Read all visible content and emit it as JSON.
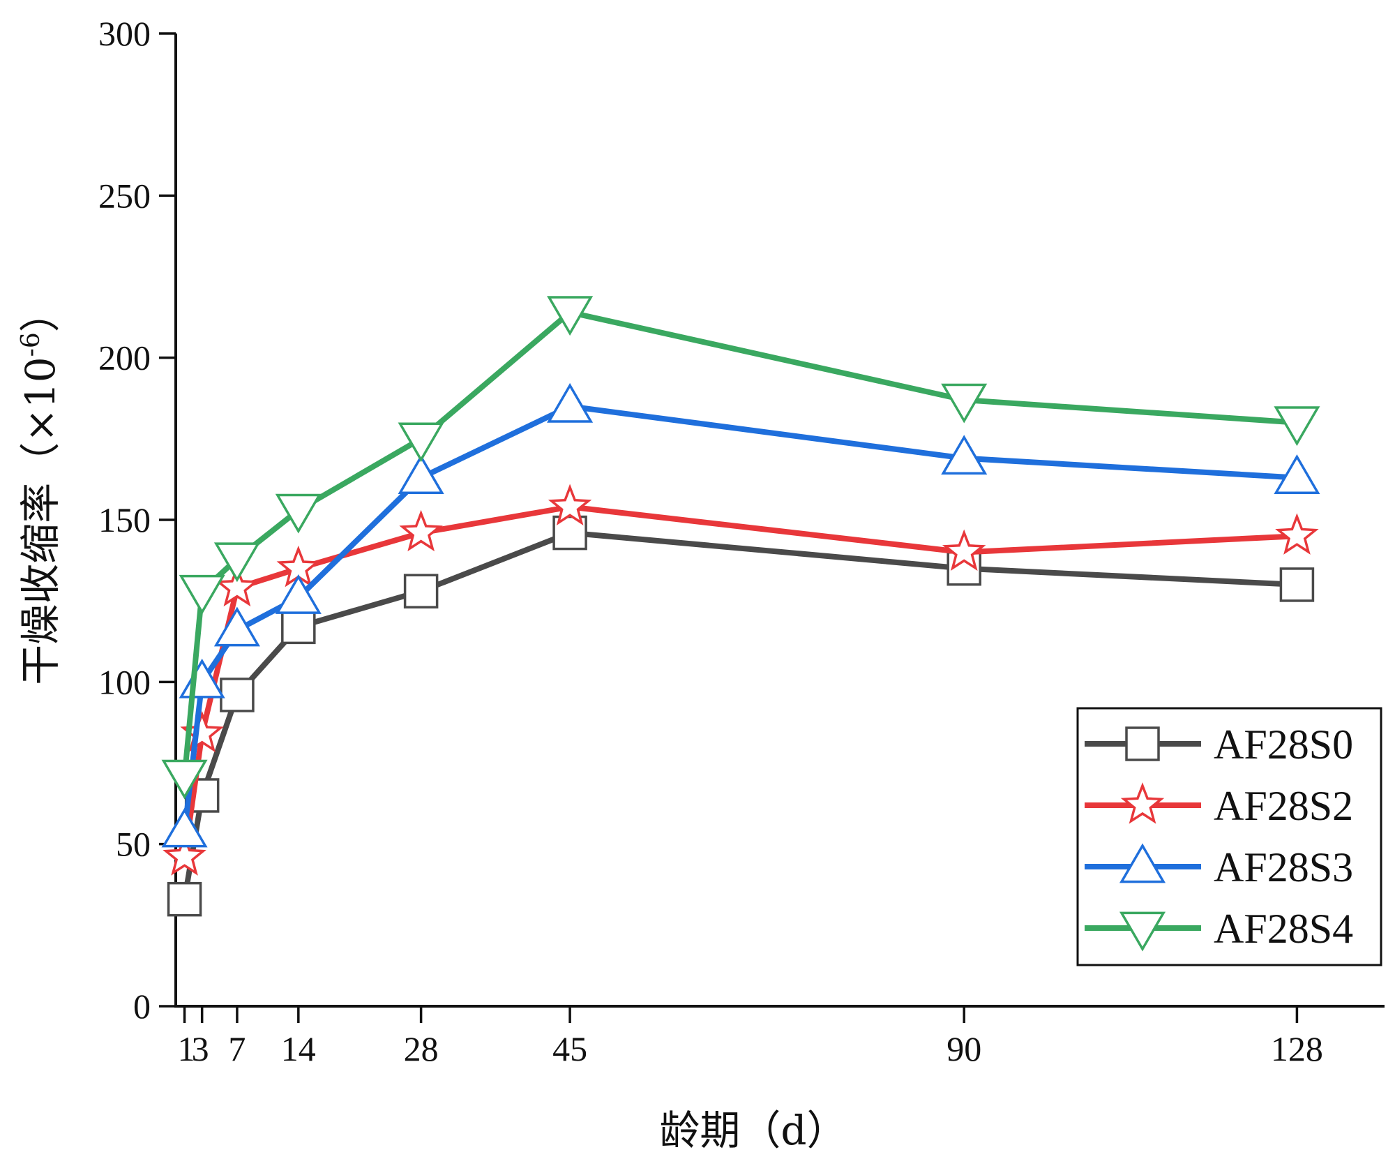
{
  "chart_data": {
    "type": "line",
    "title": "",
    "xlabel": "龄期（d）",
    "ylabel_main": "干燥收缩率（×10",
    "ylabel_sup": "-6",
    "ylabel_close": "）",
    "xlim": [
      0,
      138
    ],
    "ylim": [
      0,
      300
    ],
    "x": [
      1,
      3,
      7,
      14,
      28,
      45,
      90,
      128
    ],
    "x_ticks": [
      1,
      3,
      7,
      14,
      28,
      45,
      90,
      128
    ],
    "x_tick_labels": [
      "1",
      "3",
      "7",
      "14",
      "28",
      "45",
      "90",
      "128"
    ],
    "y_ticks": [
      0,
      50,
      100,
      150,
      200,
      250,
      300
    ],
    "y_tick_labels": [
      "0",
      "50",
      "100",
      "150",
      "200",
      "250",
      "300"
    ],
    "legend_position": "right-middle",
    "series": [
      {
        "name": "AF28S0",
        "color": "#4a4a4a",
        "marker": "square",
        "values": [
          33,
          65,
          96,
          117,
          128,
          146,
          135,
          130
        ]
      },
      {
        "name": "AF28S2",
        "color": "#e8373a",
        "marker": "star",
        "values": [
          46,
          84,
          129,
          135,
          146,
          154,
          140,
          145
        ]
      },
      {
        "name": "AF28S3",
        "color": "#1f6fdc",
        "marker": "triangle-up",
        "values": [
          54,
          100,
          116,
          126,
          163,
          185,
          169,
          163
        ]
      },
      {
        "name": "AF28S4",
        "color": "#3aa860",
        "marker": "triangle-down",
        "values": [
          71,
          128,
          138,
          153,
          175,
          214,
          187,
          180
        ]
      }
    ]
  }
}
